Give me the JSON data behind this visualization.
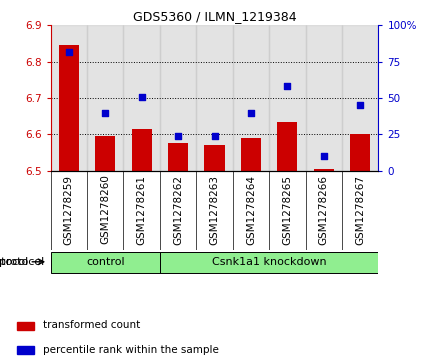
{
  "title": "GDS5360 / ILMN_1219384",
  "samples": [
    "GSM1278259",
    "GSM1278260",
    "GSM1278261",
    "GSM1278262",
    "GSM1278263",
    "GSM1278264",
    "GSM1278265",
    "GSM1278266",
    "GSM1278267"
  ],
  "bar_values": [
    6.845,
    6.595,
    6.615,
    6.575,
    6.57,
    6.59,
    6.635,
    6.505,
    6.6
  ],
  "percentile_values": [
    82,
    40,
    51,
    24,
    24,
    40,
    58,
    10,
    45
  ],
  "bar_color": "#cc0000",
  "dot_color": "#0000cc",
  "ylim_left": [
    6.5,
    6.9
  ],
  "ylim_right": [
    0,
    100
  ],
  "yticks_left": [
    6.5,
    6.6,
    6.7,
    6.8,
    6.9
  ],
  "yticks_right": [
    0,
    25,
    50,
    75,
    100
  ],
  "ytick_right_labels": [
    "0",
    "25",
    "50",
    "75",
    "100%"
  ],
  "grid_values": [
    6.6,
    6.7,
    6.8
  ],
  "control_count": 3,
  "knockdown_count": 6,
  "control_label": "control",
  "knockdown_label": "Csnk1a1 knockdown",
  "protocol_label": "protocol",
  "legend_bar_label": "transformed count",
  "legend_dot_label": "percentile rank within the sample",
  "bar_bottom": 6.5,
  "group_bg_color": "#c8c8c8",
  "protocol_bg_color": "#90ee90",
  "right_axis_color": "#0000cc",
  "left_axis_color": "#cc0000",
  "title_fontsize": 9,
  "tick_fontsize": 7.5,
  "label_fontsize": 7.5
}
